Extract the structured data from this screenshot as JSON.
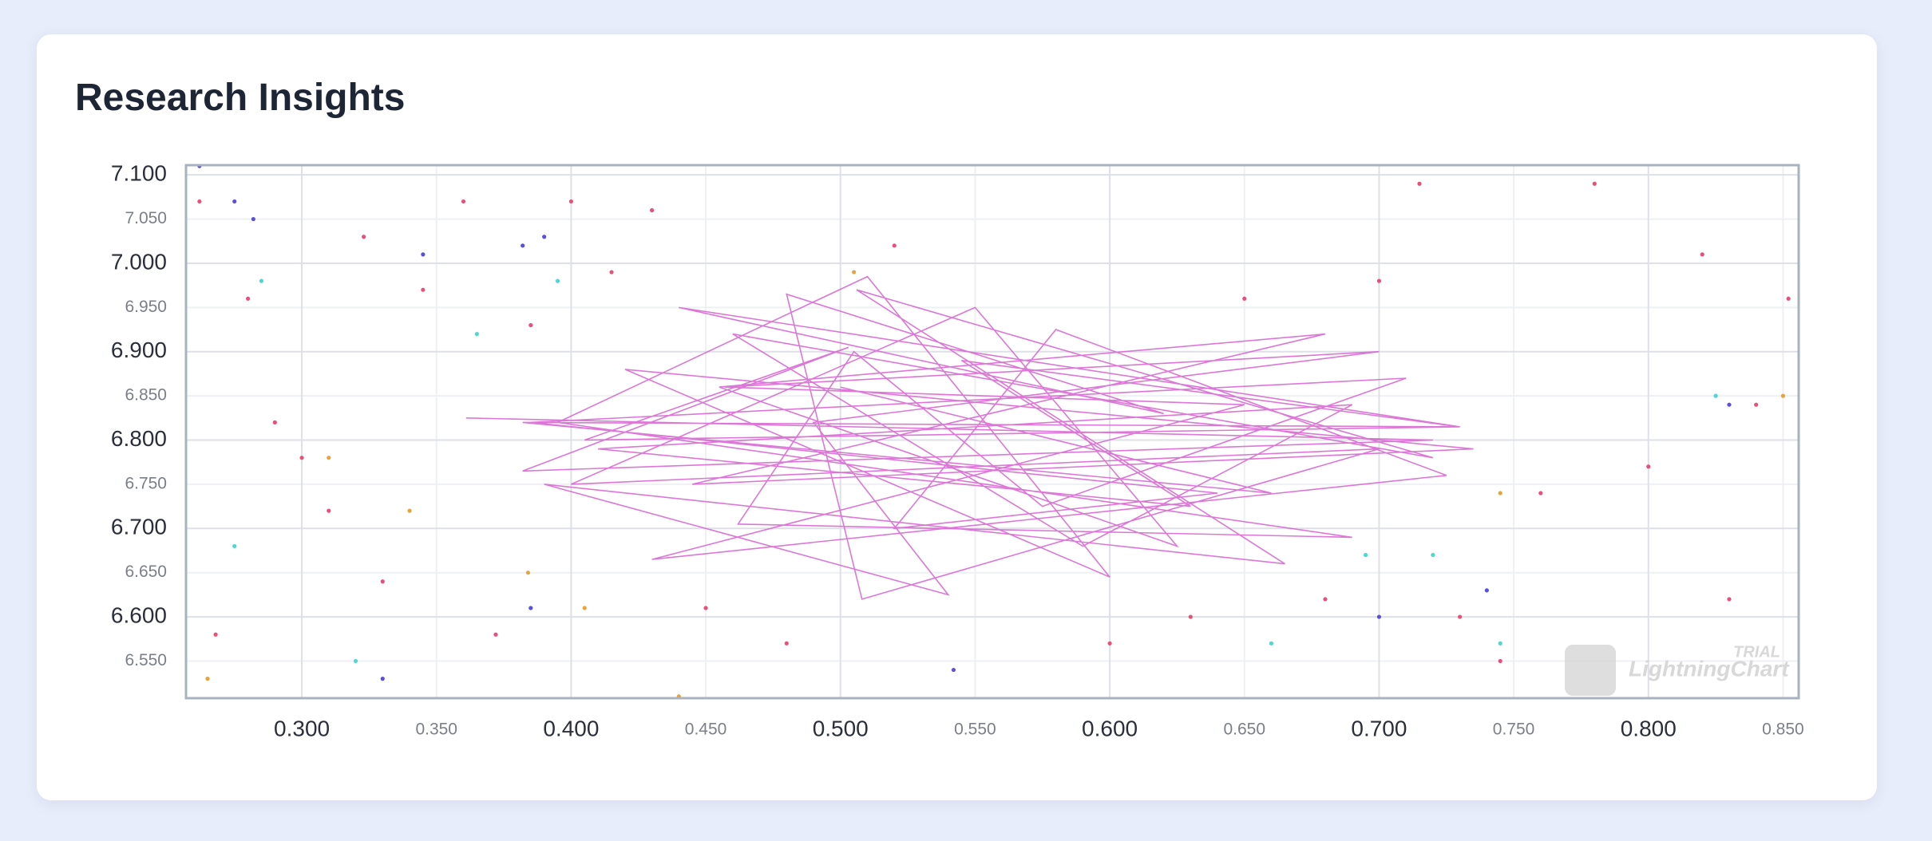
{
  "title": "Research Insights",
  "watermark": {
    "brand": "LightningChart",
    "badge": "TRIAL"
  },
  "chart_data": {
    "type": "scatter",
    "grid": true,
    "xlim": [
      0.257,
      0.8558
    ],
    "ylim": [
      6.508,
      7.111
    ],
    "xticks": [
      {
        "value": 0.3,
        "label": "0.300"
      },
      {
        "value": 0.4,
        "label": "0.400"
      },
      {
        "value": 0.5,
        "label": "0.500"
      },
      {
        "value": 0.6,
        "label": "0.600"
      },
      {
        "value": 0.7,
        "label": "0.700"
      },
      {
        "value": 0.8,
        "label": "0.800"
      }
    ],
    "xticks_minor": [
      {
        "value": 0.35,
        "label": "0.350"
      },
      {
        "value": 0.45,
        "label": "0.450"
      },
      {
        "value": 0.55,
        "label": "0.550"
      },
      {
        "value": 0.65,
        "label": "0.650"
      },
      {
        "value": 0.75,
        "label": "0.750"
      },
      {
        "value": 0.85,
        "label": "0.850"
      }
    ],
    "yticks": [
      {
        "value": 6.6,
        "label": "6.600"
      },
      {
        "value": 6.7,
        "label": "6.700"
      },
      {
        "value": 6.8,
        "label": "6.800"
      },
      {
        "value": 6.9,
        "label": "6.900"
      },
      {
        "value": 7.0,
        "label": "7.000"
      },
      {
        "value": 7.1,
        "label": "7.100"
      }
    ],
    "yticks_minor": [
      {
        "value": 6.55,
        "label": "6.550"
      },
      {
        "value": 6.65,
        "label": "6.650"
      },
      {
        "value": 6.75,
        "label": "6.750"
      },
      {
        "value": 6.85,
        "label": "6.850"
      },
      {
        "value": 6.95,
        "label": "6.950"
      },
      {
        "value": 7.05,
        "label": "7.050"
      }
    ],
    "series": [
      {
        "color": "#e8507a",
        "mode": "markers",
        "x": [
          0.262,
          0.268,
          0.28,
          0.29,
          0.3,
          0.31,
          0.323,
          0.33,
          0.345,
          0.36,
          0.372,
          0.385,
          0.4,
          0.415,
          0.43,
          0.45,
          0.48,
          0.52,
          0.6,
          0.63,
          0.65,
          0.68,
          0.7,
          0.715,
          0.73,
          0.745,
          0.76,
          0.78,
          0.8,
          0.82,
          0.83,
          0.84,
          0.852
        ],
        "values": [
          7.07,
          6.58,
          6.96,
          6.82,
          6.78,
          6.72,
          7.03,
          6.64,
          6.97,
          7.07,
          6.58,
          6.93,
          7.07,
          6.99,
          7.06,
          6.61,
          6.57,
          7.02,
          6.57,
          6.6,
          6.96,
          6.62,
          6.98,
          7.09,
          6.6,
          6.55,
          6.74,
          7.09,
          6.77,
          7.01,
          6.62,
          6.84,
          6.96
        ]
      },
      {
        "color": "#5b4fe0",
        "mode": "markers",
        "x": [
          0.262,
          0.275,
          0.282,
          0.345,
          0.382,
          0.385,
          0.39,
          0.33,
          0.542,
          0.83,
          0.74,
          0.7
        ],
        "values": [
          7.11,
          7.07,
          7.05,
          7.01,
          7.02,
          6.61,
          7.03,
          6.53,
          6.54,
          6.84,
          6.63,
          6.6
        ]
      },
      {
        "color": "#4fd6d0",
        "mode": "markers",
        "x": [
          0.275,
          0.285,
          0.365,
          0.32,
          0.395,
          0.66,
          0.695,
          0.72,
          0.745,
          0.825
        ],
        "values": [
          6.68,
          6.98,
          6.92,
          6.55,
          6.98,
          6.57,
          6.67,
          6.67,
          6.57,
          6.85
        ]
      },
      {
        "color": "#e8a33a",
        "mode": "markers",
        "x": [
          0.265,
          0.31,
          0.34,
          0.384,
          0.405,
          0.44,
          0.505,
          0.745,
          0.85
        ],
        "values": [
          6.53,
          6.78,
          6.72,
          6.65,
          6.61,
          6.51,
          6.99,
          6.74,
          6.85
        ]
      },
      {
        "color": "#d65fd0",
        "mode": "line",
        "x": [
          0.361,
          0.72,
          0.382,
          0.503,
          0.405,
          0.73,
          0.44,
          0.62,
          0.48,
          0.508,
          0.7,
          0.4,
          0.55,
          0.625,
          0.455,
          0.68,
          0.445,
          0.735,
          0.42,
          0.6,
          0.51,
          0.395,
          0.69,
          0.462,
          0.505,
          0.575,
          0.71,
          0.385,
          0.64,
          0.52,
          0.58,
          0.725,
          0.43,
          0.65,
          0.457,
          0.7,
          0.49,
          0.54,
          0.39,
          0.665,
          0.506,
          0.72,
          0.46,
          0.59,
          0.69,
          0.41,
          0.63,
          0.545,
          0.73,
          0.382,
          0.66,
          0.5
        ],
        "values": [
          6.825,
          6.8,
          6.765,
          6.905,
          6.8,
          6.815,
          6.95,
          6.83,
          6.965,
          6.62,
          6.79,
          6.75,
          6.95,
          6.68,
          6.86,
          6.92,
          6.75,
          6.79,
          6.88,
          6.645,
          6.985,
          6.82,
          6.69,
          6.705,
          6.9,
          6.725,
          6.87,
          6.82,
          6.74,
          6.7,
          6.925,
          6.76,
          6.665,
          6.84,
          6.86,
          6.9,
          6.82,
          6.625,
          6.75,
          6.66,
          6.97,
          6.78,
          6.92,
          6.68,
          6.84,
          6.79,
          6.725,
          6.89,
          6.815,
          6.82,
          6.74,
          6.86
        ]
      }
    ]
  }
}
